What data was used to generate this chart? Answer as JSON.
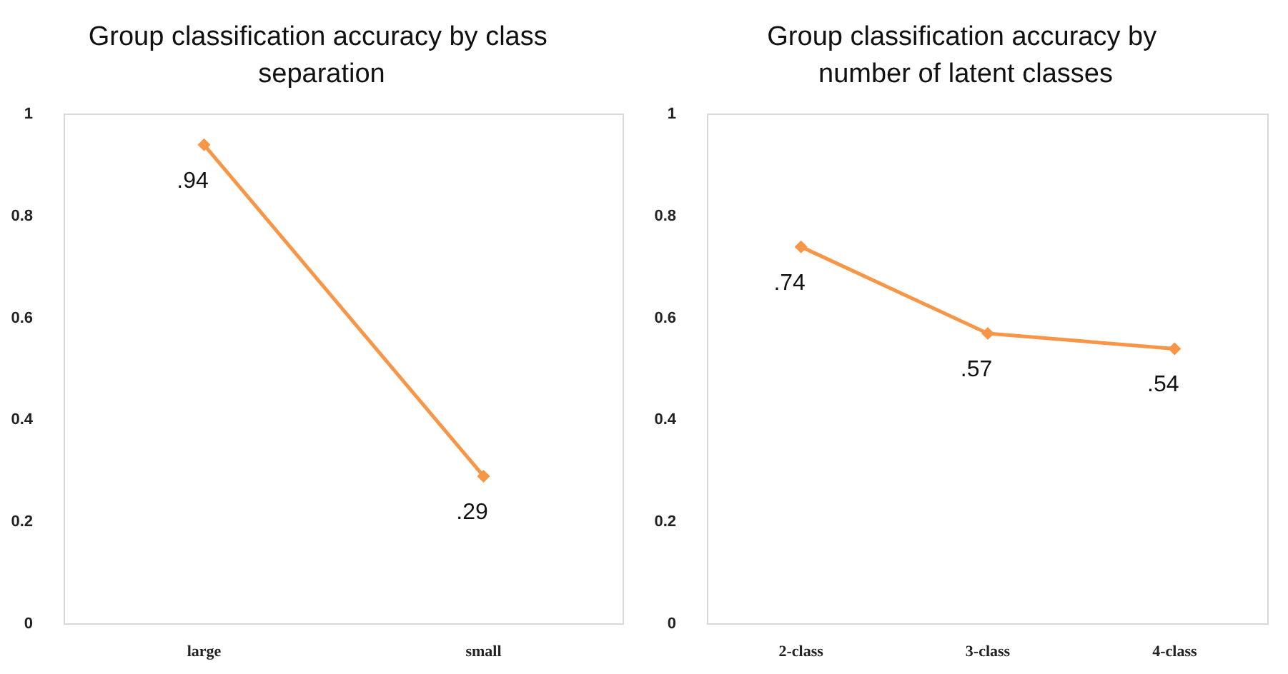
{
  "chart_data": [
    {
      "type": "line",
      "title": "Group classification accuracy by class separation",
      "categories": [
        "large",
        "small"
      ],
      "series": [
        {
          "color": "#f79646",
          "values": [
            0.94,
            0.29
          ],
          "value_labels": [
            ".94",
            ".29"
          ]
        }
      ],
      "ylim": [
        0,
        1
      ],
      "yticks": [
        0,
        0.2,
        0.4,
        0.6,
        0.8,
        1
      ],
      "marker": "diamond",
      "line_style": "solid"
    },
    {
      "type": "line",
      "title": "Group classification accuracy by number of latent classes",
      "categories": [
        "2-class",
        "3-class",
        "4-class"
      ],
      "series": [
        {
          "color": "#f79646",
          "values": [
            0.74,
            0.57,
            0.54
          ],
          "value_labels": [
            ".74",
            ".57",
            ".54"
          ]
        }
      ],
      "ylim": [
        0,
        1
      ],
      "yticks": [
        0,
        0.2,
        0.4,
        0.6,
        0.8,
        1
      ],
      "marker": "diamond",
      "line_style": "solid"
    }
  ]
}
